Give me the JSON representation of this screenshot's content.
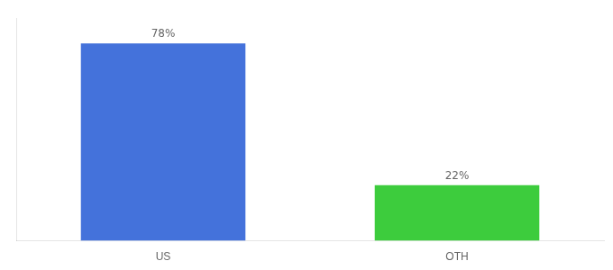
{
  "chart_data": {
    "type": "bar",
    "categories": [
      "US",
      "OTH"
    ],
    "values": [
      78,
      22
    ],
    "value_labels": [
      "78%",
      "22%"
    ],
    "colors": [
      "#4472DB",
      "#3DCC3D"
    ],
    "ylim": [
      0,
      88
    ],
    "data_labels": true,
    "tick_labels": "x",
    "grid": false
  }
}
